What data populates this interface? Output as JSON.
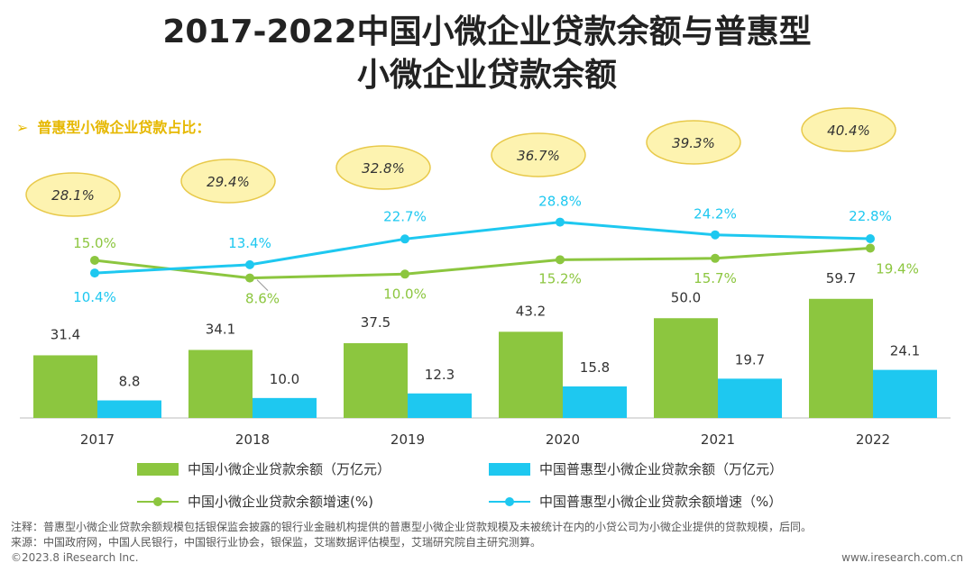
{
  "title_line1": "2017-2022中国小微企业贷款余额与普惠型",
  "title_line2": "小微企业贷款余额",
  "share_label": "普惠型小微企业贷款占比：",
  "share_arrow": "➢",
  "chart_data": {
    "type": "bar+line",
    "categories": [
      "2017",
      "2018",
      "2019",
      "2020",
      "2021",
      "2022"
    ],
    "bars": [
      {
        "name": "中国小微企业贷款余额（万亿元）",
        "color": "#8cc63f",
        "values": [
          31.4,
          34.1,
          37.5,
          43.2,
          50.0,
          59.7
        ],
        "labels": [
          "31.4",
          "34.1",
          "37.5",
          "43.2",
          "50.0",
          "59.7"
        ]
      },
      {
        "name": "中国普惠型小微企业贷款余额（万亿元）",
        "color": "#1ec8f0",
        "values": [
          8.8,
          10.0,
          12.3,
          15.8,
          19.7,
          24.1
        ],
        "labels": [
          "8.8",
          "10.0",
          "12.3",
          "15.8",
          "19.7",
          "24.1"
        ]
      }
    ],
    "lines": [
      {
        "name": "中国小微企业贷款余额增速(%)",
        "color": "#8cc63f",
        "values": [
          15.0,
          8.6,
          10.0,
          15.2,
          15.7,
          19.4
        ],
        "labels": [
          "15.0%",
          "8.6%",
          "10.0%",
          "15.2%",
          "15.7%",
          "19.4%"
        ]
      },
      {
        "name": "中国普惠型小微企业贷款余额增速（%）",
        "color": "#1ec8f0",
        "values": [
          10.4,
          13.4,
          22.7,
          28.8,
          24.2,
          22.8
        ],
        "labels": [
          "10.4%",
          "13.4%",
          "22.7%",
          "28.8%",
          "24.2%",
          "22.8%"
        ]
      }
    ],
    "share": {
      "name": "普惠型小微企业贷款占比",
      "values": [
        28.1,
        29.4,
        32.8,
        36.7,
        39.3,
        40.4
      ],
      "labels": [
        "28.1%",
        "29.4%",
        "32.8%",
        "36.7%",
        "39.3%",
        "40.4%"
      ]
    },
    "bar_ylim": [
      0,
      70
    ],
    "line_ylim": [
      0,
      35
    ]
  },
  "legend": {
    "bar1": "中国小微企业贷款余额（万亿元）",
    "bar2": "中国普惠型小微企业贷款余额（万亿元）",
    "line1": "中国小微企业贷款余额增速(%)",
    "line2": "中国普惠型小微企业贷款余额增速（%）"
  },
  "note": "注释：普惠型小微企业贷款余额规模包括银保监会披露的银行业金融机构提供的普惠型小微企业贷款规模及未被统计在内的小贷公司为小微企业提供的贷款规模，后同。",
  "source": "来源：中国政府网，中国人民银行，中国银行业协会，银保监，艾瑞数据评估模型，艾瑞研究院自主研究测算。",
  "copyright": "©2023.8 iResearch Inc.",
  "website": "www.iresearch.com.cn",
  "colors": {
    "green": "#8cc63f",
    "blue": "#1ec8f0",
    "ellipse_fill": "#fdf3b0",
    "ellipse_stroke": "#e8c94a"
  }
}
